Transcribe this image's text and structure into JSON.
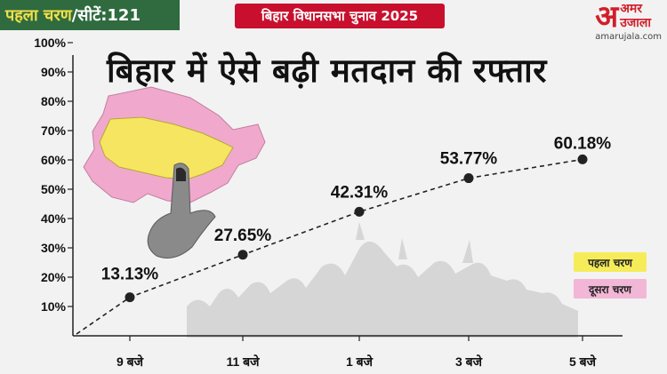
{
  "header": {
    "phase_label": "पहला चरण",
    "seats_label": "/सीटें:121",
    "banner": "बिहार विधानसभा चुनाव 2025"
  },
  "brand": {
    "mark": "अ",
    "name": "अमर उजाला",
    "domain": "amarujala.com"
  },
  "legend": {
    "phase1": "पहला चरण",
    "phase2": "दूसरा चरण"
  },
  "colors": {
    "phase1": "#f6ec5a",
    "phase2": "#f2b6d6",
    "badge": "#2f6b3f",
    "banner": "#c8102e"
  },
  "chart_data": {
    "type": "line",
    "title": "बिहार में ऐसे बढ़ी मतदान की रफ्तार",
    "categories": [
      "9 बजे",
      "11 बजे",
      "1 बजे",
      "3 बजे",
      "5 बजे"
    ],
    "values": [
      13.13,
      27.65,
      42.31,
      53.77,
      60.18
    ],
    "data_labels": [
      "13.13%",
      "27.65%",
      "42.31%",
      "53.77%",
      "60.18%"
    ],
    "yticks": [
      "10%",
      "20%",
      "30%",
      "40%",
      "50%",
      "60%",
      "70%",
      "80%",
      "90%",
      "100%"
    ],
    "ylim": [
      0,
      100
    ],
    "line_style": "dashed",
    "grid": false
  }
}
